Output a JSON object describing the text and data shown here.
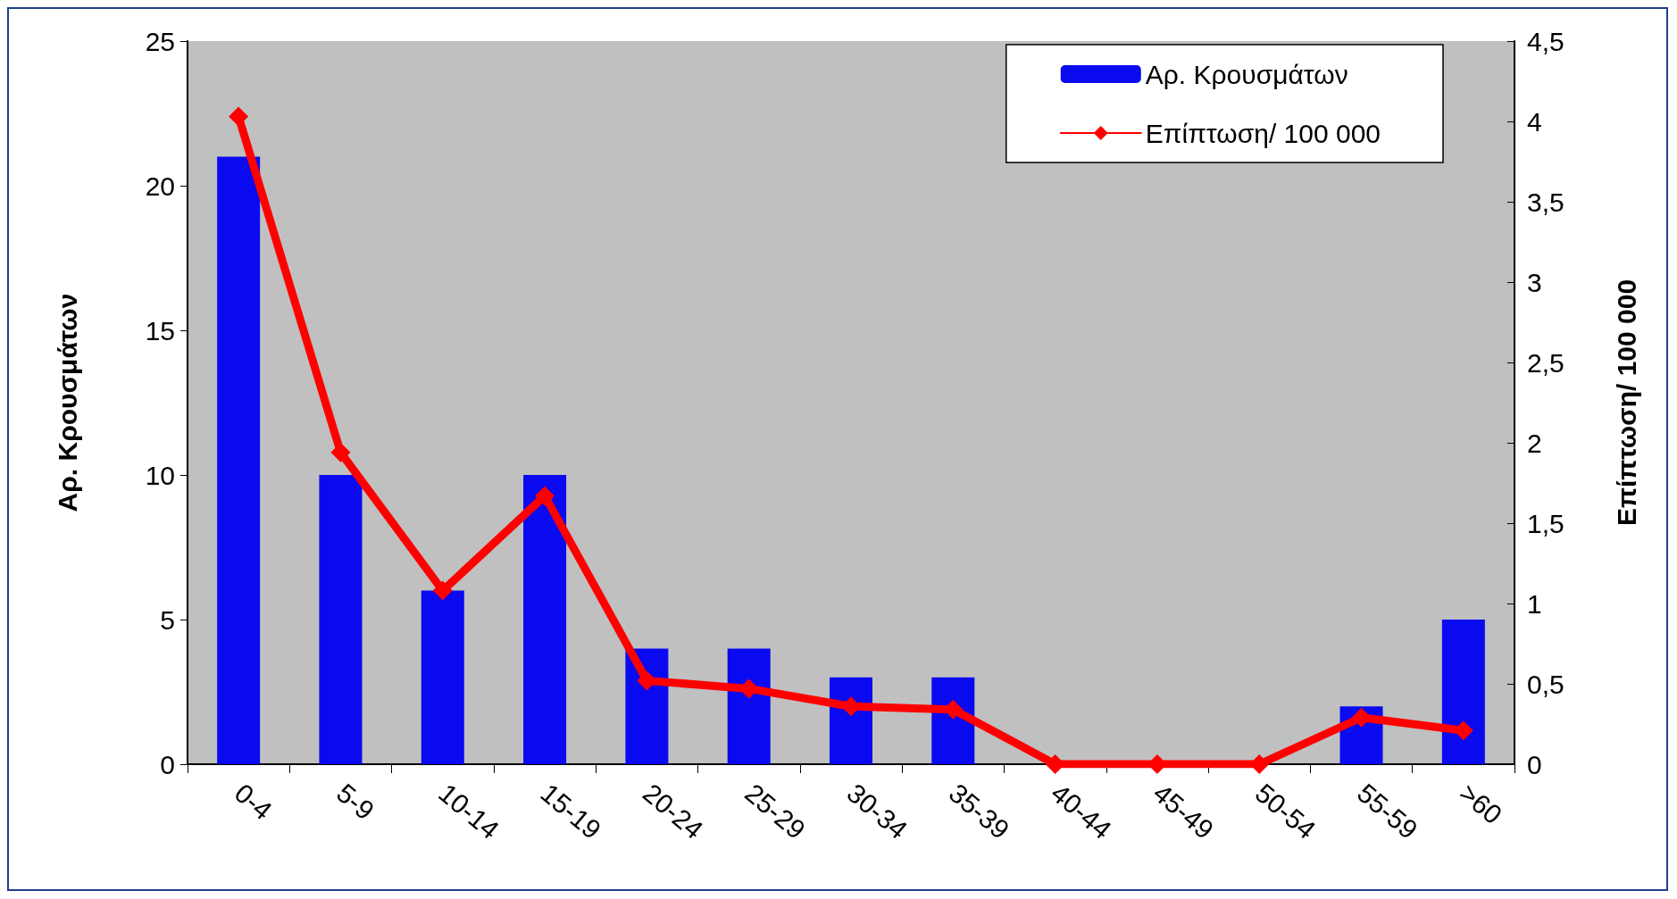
{
  "chart_data": {
    "type": "bar",
    "ylabel": "Αρ. Κρουσμάτων",
    "y2label": "Επίπτωση/ 100 000",
    "categories": [
      "0-4",
      "5-9",
      "10-14",
      "15-19",
      "20-24",
      "25-29",
      "30-34",
      "35-39",
      "40-44",
      "45-49",
      "50-54",
      "55-59",
      ">60"
    ],
    "series": [
      {
        "name": "Αρ. Κρουσμάτων",
        "color": "#0a0af0",
        "values": [
          21,
          10,
          6,
          10,
          4,
          4,
          3,
          3,
          0,
          0,
          0,
          2,
          5
        ]
      },
      {
        "name": "Επίπτωση/ 100 000",
        "type": "line",
        "axis": "y2",
        "color": "#ff0000",
        "marker": "diamond",
        "values": [
          4.03,
          1.94,
          1.08,
          1.67,
          0.52,
          0.47,
          0.36,
          0.34,
          0,
          0,
          0,
          0.29,
          0.21
        ]
      }
    ],
    "ylim": [
      0,
      25
    ],
    "yticks": [
      0,
      5,
      10,
      15,
      20,
      25
    ],
    "y2lim": [
      0,
      4.5
    ],
    "y2ticks": [
      0,
      {
        "value": 0.5,
        "label": "0,5"
      },
      1,
      {
        "value": 1.5,
        "label": "1,5"
      },
      2,
      {
        "value": 2.5,
        "label": "2,5"
      },
      3,
      {
        "value": 3.5,
        "label": "3,5"
      },
      4,
      {
        "value": 4.5,
        "label": "4,5"
      }
    ],
    "grid": false,
    "legend": "top right"
  }
}
